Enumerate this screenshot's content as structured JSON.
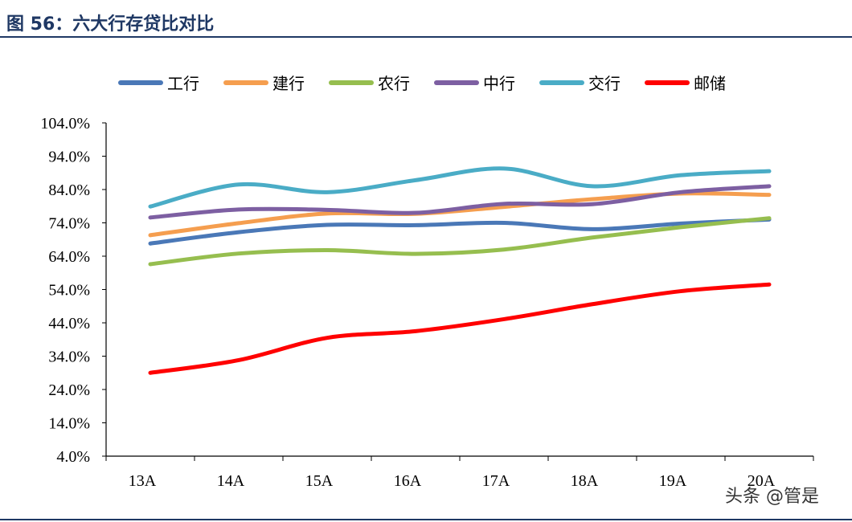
{
  "figure": {
    "title": "图 56：六大行存贷比对比"
  },
  "watermark": "头条 @管是",
  "chart_data": {
    "type": "line",
    "title": "图 56：六大行存贷比对比",
    "xlabel": "",
    "ylabel": "",
    "categories": [
      "13A",
      "14A",
      "15A",
      "16A",
      "17A",
      "18A",
      "19A",
      "20A"
    ],
    "yticks": [
      "4.0%",
      "14.0%",
      "24.0%",
      "34.0%",
      "44.0%",
      "54.0%",
      "64.0%",
      "74.0%",
      "84.0%",
      "94.0%",
      "104.0%"
    ],
    "ylim": [
      4,
      104
    ],
    "grid": false,
    "legend_position": "top",
    "series": [
      {
        "name": "工行",
        "color": "#4a78b7",
        "values": [
          67.8,
          71.2,
          73.4,
          73.3,
          74.0,
          72.1,
          73.8,
          75.0
        ]
      },
      {
        "name": "建行",
        "color": "#f59e4f",
        "values": [
          70.3,
          73.9,
          76.8,
          76.7,
          78.8,
          81.1,
          82.8,
          82.4
        ]
      },
      {
        "name": "农行",
        "color": "#96be4f",
        "values": [
          61.6,
          64.8,
          65.8,
          64.7,
          66.0,
          69.6,
          72.7,
          75.4
        ]
      },
      {
        "name": "中行",
        "color": "#7d5fa2",
        "values": [
          75.6,
          78.0,
          77.9,
          77.0,
          79.7,
          79.6,
          83.2,
          85.0
        ]
      },
      {
        "name": "交行",
        "color": "#4aacc6",
        "values": [
          78.9,
          85.5,
          83.2,
          86.8,
          90.3,
          85.0,
          88.3,
          89.5
        ]
      },
      {
        "name": "邮储",
        "color": "#ff0000",
        "values": [
          29.0,
          32.8,
          39.5,
          41.5,
          45.1,
          49.6,
          53.5,
          55.5
        ]
      }
    ]
  }
}
